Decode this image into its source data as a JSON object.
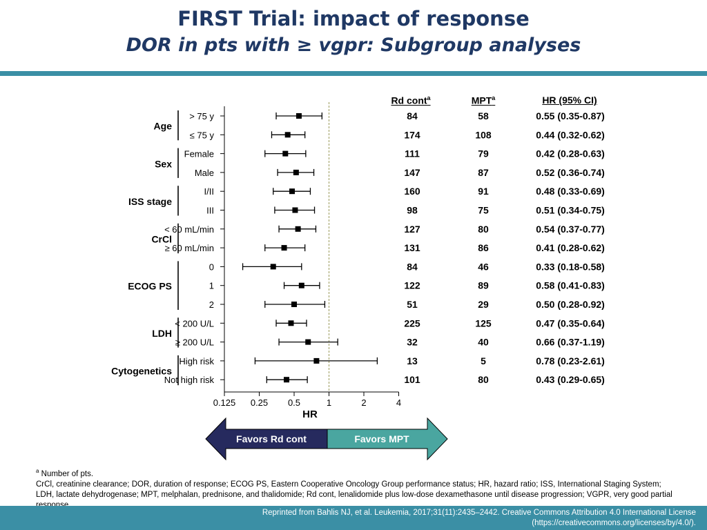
{
  "title": "FIRST Trial: impact of response",
  "subtitle": "DOR in pts with ≥ vgpr: Subgroup analyses",
  "columns": {
    "rd": "Rd cont",
    "mpt": "MPT",
    "hr": "HR (95% CI)",
    "sup": "a"
  },
  "arrows": {
    "left": "Favors Rd cont",
    "right": "Favors MPT"
  },
  "colors": {
    "title": "#1f3864",
    "rule": "#3b8fa5",
    "left_arrow": "#262a5e",
    "right_arrow": "#4aa6a0"
  },
  "footnote": {
    "sup": "a",
    "note": "Number of pts.",
    "abbrev": "CrCl, creatinine clearance; DOR, duration of response; ECOG PS, Eastern Cooperative Oncology Group performance status; HR, hazard ratio; ISS, International Staging System; LDH, lactate dehydrogenase; MPT, melphalan, prednisone, and thalidomide; Rd cont, lenalidomide plus low-dose dexamethasone until disease progression; VGPR, very good partial response."
  },
  "citation": "Reprinted from Bahlis NJ, et al. Leukemia, 2017;31(11):2435–2442. Creative Commons Attribution 4.0 International License (https://creativecommons.org/licenses/by/4.0/).",
  "chart_data": {
    "type": "forest",
    "xlabel": "HR",
    "xscale": "log2",
    "xlim": [
      0.125,
      4
    ],
    "xticks": [
      "0.125",
      "0.25",
      "0.5",
      "1",
      "2",
      "4"
    ],
    "reference_line": 1,
    "groups": [
      {
        "name": "Age",
        "rows": [
          {
            "label": "> 75 y",
            "rd": "84",
            "mpt": "58",
            "hr_text": "0.55 (0.35-0.87)",
            "hr": 0.55,
            "lo": 0.35,
            "hi": 0.87
          },
          {
            "label": "≤ 75 y",
            "rd": "174",
            "mpt": "108",
            "hr_text": "0.44 (0.32-0.62)",
            "hr": 0.44,
            "lo": 0.32,
            "hi": 0.62
          }
        ]
      },
      {
        "name": "Sex",
        "rows": [
          {
            "label": "Female",
            "rd": "111",
            "mpt": "79",
            "hr_text": "0.42 (0.28-0.63)",
            "hr": 0.42,
            "lo": 0.28,
            "hi": 0.63
          },
          {
            "label": "Male",
            "rd": "147",
            "mpt": "87",
            "hr_text": "0.52 (0.36-0.74)",
            "hr": 0.52,
            "lo": 0.36,
            "hi": 0.74
          }
        ]
      },
      {
        "name": "ISS stage",
        "rows": [
          {
            "label": "I/II",
            "rd": "160",
            "mpt": "91",
            "hr_text": "0.48 (0.33-0.69)",
            "hr": 0.48,
            "lo": 0.33,
            "hi": 0.69
          },
          {
            "label": "III",
            "rd": "98",
            "mpt": "75",
            "hr_text": "0.51 (0.34-0.75)",
            "hr": 0.51,
            "lo": 0.34,
            "hi": 0.75
          }
        ]
      },
      {
        "name": "CrCl",
        "rows": [
          {
            "label": "< 60 mL/min",
            "rd": "127",
            "mpt": "80",
            "hr_text": "0.54 (0.37-0.77)",
            "hr": 0.54,
            "lo": 0.37,
            "hi": 0.77
          },
          {
            "label": "≥ 60 mL/min",
            "rd": "131",
            "mpt": "86",
            "hr_text": "0.41 (0.28-0.62)",
            "hr": 0.41,
            "lo": 0.28,
            "hi": 0.62
          }
        ]
      },
      {
        "name": "ECOG PS",
        "rows": [
          {
            "label": "0",
            "rd": "84",
            "mpt": "46",
            "hr_text": "0.33 (0.18-0.58)",
            "hr": 0.33,
            "lo": 0.18,
            "hi": 0.58
          },
          {
            "label": "1",
            "rd": "122",
            "mpt": "89",
            "hr_text": "0.58 (0.41-0.83)",
            "hr": 0.58,
            "lo": 0.41,
            "hi": 0.83
          },
          {
            "label": "2",
            "rd": "51",
            "mpt": "29",
            "hr_text": "0.50 (0.28-0.92)",
            "hr": 0.5,
            "lo": 0.28,
            "hi": 0.92
          }
        ]
      },
      {
        "name": "LDH",
        "rows": [
          {
            "label": "< 200 U/L",
            "rd": "225",
            "mpt": "125",
            "hr_text": "0.47 (0.35-0.64)",
            "hr": 0.47,
            "lo": 0.35,
            "hi": 0.64
          },
          {
            "label": "≥ 200 U/L",
            "rd": "32",
            "mpt": "40",
            "hr_text": "0.66 (0.37-1.19)",
            "hr": 0.66,
            "lo": 0.37,
            "hi": 1.19
          }
        ]
      },
      {
        "name": "Cytogenetics",
        "rows": [
          {
            "label": "High risk",
            "rd": "13",
            "mpt": "5",
            "hr_text": "0.78 (0.23-2.61)",
            "hr": 0.78,
            "lo": 0.23,
            "hi": 2.61
          },
          {
            "label": "Not high risk",
            "rd": "101",
            "mpt": "80",
            "hr_text": "0.43 (0.29-0.65)",
            "hr": 0.43,
            "lo": 0.29,
            "hi": 0.65
          }
        ]
      }
    ]
  }
}
